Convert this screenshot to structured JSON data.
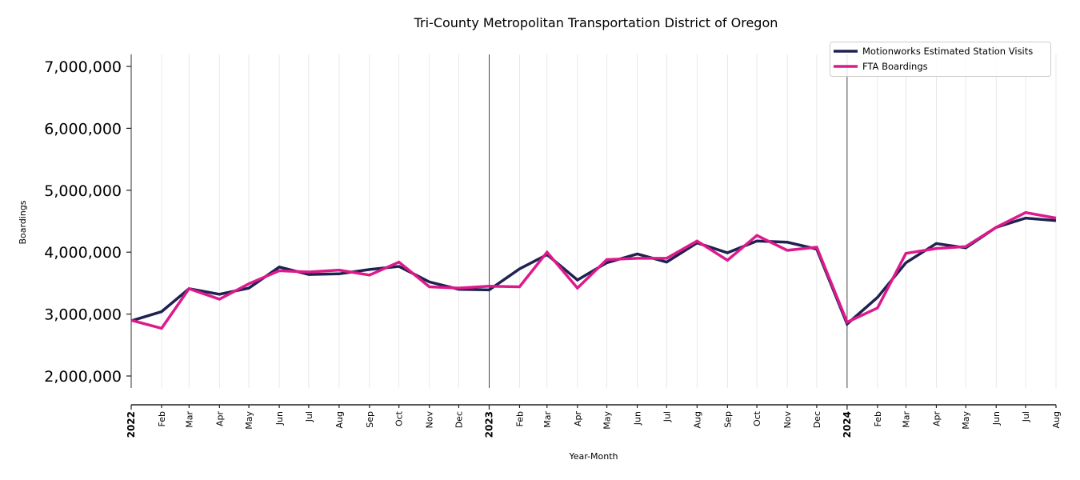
{
  "chart_data": {
    "type": "line",
    "title": "Tri-County Metropolitan Transportation District of Oregon",
    "xlabel": "Year-Month",
    "ylabel": "Boardings",
    "ylim": [
      1800000,
      7200000
    ],
    "yticks": [
      2000000,
      3000000,
      4000000,
      5000000,
      6000000,
      7000000
    ],
    "ytick_labels": [
      "2,000,000",
      "3,000,000",
      "4,000,000",
      "5,000,000",
      "6,000,000",
      "7,000,000"
    ],
    "grid": "vertical-monthly",
    "year_markers": [
      "2023",
      "2024"
    ],
    "legend_position": "top-right",
    "x": [
      "2022-01",
      "2022-02",
      "2022-03",
      "2022-04",
      "2022-05",
      "2022-06",
      "2022-07",
      "2022-08",
      "2022-09",
      "2022-10",
      "2022-11",
      "2022-12",
      "2023-01",
      "2023-02",
      "2023-03",
      "2023-04",
      "2023-05",
      "2023-06",
      "2023-07",
      "2023-08",
      "2023-09",
      "2023-10",
      "2023-11",
      "2023-12",
      "2024-01",
      "2024-02",
      "2024-03",
      "2024-04",
      "2024-05",
      "2024-06",
      "2024-07",
      "2024-08"
    ],
    "xtick_labels": [
      "2022",
      "Feb",
      "Mar",
      "Apr",
      "May",
      "Jun",
      "Jul",
      "Aug",
      "Sep",
      "Oct",
      "Nov",
      "Dec",
      "2023",
      "Feb",
      "Mar",
      "Apr",
      "May",
      "Jun",
      "Jul",
      "Aug",
      "Sep",
      "Oct",
      "Nov",
      "Dec",
      "2024",
      "Feb",
      "Mar",
      "Apr",
      "May",
      "Jun",
      "Jul",
      "Aug"
    ],
    "series": [
      {
        "name": "Motionworks Estimated Station Visits",
        "color": "#1f2150",
        "values": [
          2890000,
          3040000,
          3410000,
          3320000,
          3420000,
          3760000,
          3640000,
          3650000,
          3720000,
          3770000,
          3520000,
          3400000,
          3390000,
          3730000,
          3960000,
          3550000,
          3830000,
          3970000,
          3840000,
          4150000,
          3990000,
          4180000,
          4160000,
          4050000,
          2840000,
          3270000,
          3830000,
          4140000,
          4070000,
          4400000,
          4550000,
          4510000
        ]
      },
      {
        "name": "FTA Boardings",
        "color": "#dc1a8c",
        "values": [
          2900000,
          2770000,
          3410000,
          3240000,
          3490000,
          3700000,
          3680000,
          3710000,
          3630000,
          3840000,
          3440000,
          3420000,
          3450000,
          3440000,
          4000000,
          3420000,
          3880000,
          3900000,
          3900000,
          4180000,
          3870000,
          4270000,
          4030000,
          4080000,
          2870000,
          3100000,
          3980000,
          4060000,
          4090000,
          4400000,
          4640000,
          4550000
        ]
      }
    ]
  }
}
